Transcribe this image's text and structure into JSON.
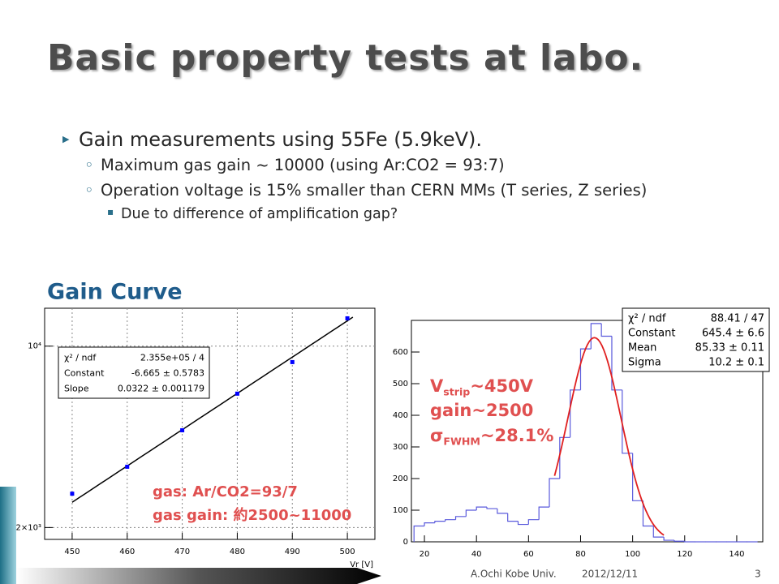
{
  "slide": {
    "title": "Basic property tests at labo.",
    "bullets": [
      {
        "level": 1,
        "text": "Gain measurements using 55Fe (5.9keV)."
      },
      {
        "level": 2,
        "text": "Maximum gas gain ~ 10000 (using Ar:CO2 = 93:7)"
      },
      {
        "level": 2,
        "text": "Operation voltage is 15% smaller than CERN MMs (T series, Z series)"
      },
      {
        "level": 3,
        "text": "Due to difference of amplification gap?"
      }
    ],
    "footer": {
      "author": "A.Ochi Kobe Univ.",
      "date": "2012/12/11",
      "page": "3"
    }
  },
  "chart_data": [
    {
      "type": "scatter",
      "title": "Gain Curve",
      "xlabel": "Vr [V]",
      "x": [
        450,
        460,
        470,
        480,
        490,
        500
      ],
      "values": [
        2700,
        3430,
        4740,
        6560,
        8680,
        12800
      ],
      "color": "#0000ff",
      "xlim": [
        445,
        505
      ],
      "ylim": [
        1800,
        14000
      ],
      "log_y": true,
      "xticks": [
        450,
        460,
        470,
        480,
        490,
        500
      ],
      "yticks": [
        {
          "value": 2000,
          "label": "2×10³"
        },
        {
          "value": 10000,
          "label": "10⁴"
        }
      ],
      "grid": true,
      "fit": {
        "constant": -6.665,
        "slope": 0.0322,
        "range": [
          450,
          501
        ],
        "color": "#000000"
      },
      "stats": [
        [
          "χ² / ndf",
          "2.355e+05 / 4"
        ],
        [
          "Constant",
          "-6.665 ± 0.5783"
        ],
        [
          "Slope",
          "0.0322 ± 0.001179"
        ]
      ],
      "annotations": [
        {
          "main": "gas: Ar/CO2=93/7"
        },
        {
          "main": "gas gain: 約2500~11000"
        }
      ]
    },
    {
      "type": "histogram",
      "bins": [
        16,
        20,
        24,
        28,
        32,
        36,
        40,
        44,
        48,
        52,
        56,
        60,
        64,
        68,
        72,
        76,
        80,
        84,
        88,
        92,
        96,
        100,
        104,
        108,
        112,
        116,
        120,
        124,
        128,
        132,
        136,
        140,
        144,
        148
      ],
      "values": [
        50,
        60,
        65,
        70,
        80,
        100,
        110,
        105,
        90,
        65,
        55,
        70,
        110,
        200,
        330,
        480,
        610,
        690,
        650,
        480,
        280,
        130,
        50,
        15,
        5,
        2,
        0,
        0,
        0,
        0,
        0,
        0,
        0
      ],
      "color": "#5a5adc",
      "xlim": [
        15,
        150
      ],
      "ylim": [
        0,
        700
      ],
      "xticks": [
        20,
        40,
        60,
        80,
        100,
        120,
        140
      ],
      "yticks": [
        0,
        100,
        200,
        300,
        400,
        500,
        600
      ],
      "grid": false,
      "fit": {
        "constant": 645.4,
        "mean": 85.33,
        "sigma": 10.2,
        "range": [
          70,
          112
        ],
        "color": "#e02020"
      },
      "stats": [
        [
          "χ² / ndf",
          "88.41 / 47"
        ],
        [
          "Constant",
          "645.4 ± 6.6"
        ],
        [
          "Mean",
          "85.33 ± 0.11"
        ],
        [
          "Sigma",
          "10.2 ± 0.1"
        ]
      ],
      "annotations": [
        {
          "main": "V",
          "sub": "strip",
          "rest": "~450V"
        },
        {
          "main": "gain~2500"
        },
        {
          "main": "σ",
          "sub": "FWHM",
          "rest": "~28.1%"
        }
      ]
    }
  ]
}
